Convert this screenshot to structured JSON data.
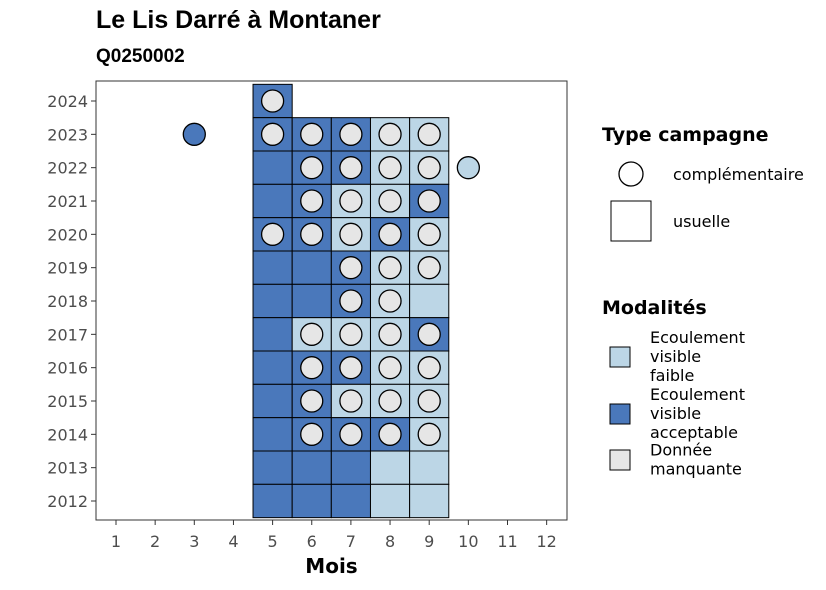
{
  "title": "Le Lis Darré à Montaner",
  "subtitle": "Q0250002",
  "chart_data": {
    "type": "heatmap",
    "xlabel": "Mois",
    "ylabel": "",
    "x_ticks": [
      1,
      2,
      3,
      4,
      5,
      6,
      7,
      8,
      9,
      10,
      11,
      12
    ],
    "y_ticks": [
      2012,
      2013,
      2014,
      2015,
      2016,
      2017,
      2018,
      2019,
      2020,
      2021,
      2022,
      2023,
      2024
    ],
    "grid": false,
    "legend_position": "right",
    "legend_type": {
      "title": "Type campagne",
      "entries": [
        {
          "label": "complémentaire",
          "shape": "circle"
        },
        {
          "label": "usuelle",
          "shape": "square"
        }
      ]
    },
    "legend_modalites": {
      "title": "Modalités",
      "entries": [
        {
          "key": "faible",
          "lines": [
            "Ecoulement",
            "visible",
            "faible"
          ],
          "color": "#bcd6e6"
        },
        {
          "key": "acceptable",
          "lines": [
            "Ecoulement",
            "visible",
            "acceptable"
          ],
          "color": "#4a78bb"
        },
        {
          "key": "manquante",
          "lines": [
            "Donnée",
            "manquante"
          ],
          "color": "#e6e6e6"
        }
      ]
    },
    "colors": {
      "faible": "#bcd6e6",
      "acceptable": "#4a78bb",
      "manquante": "#e6e6e6"
    },
    "usuelle_cells": [
      {
        "year": 2024,
        "month": 5,
        "value": "acceptable"
      },
      {
        "year": 2023,
        "month": 5,
        "value": "acceptable"
      },
      {
        "year": 2023,
        "month": 6,
        "value": "acceptable"
      },
      {
        "year": 2023,
        "month": 7,
        "value": "acceptable"
      },
      {
        "year": 2023,
        "month": 8,
        "value": "faible"
      },
      {
        "year": 2023,
        "month": 9,
        "value": "faible"
      },
      {
        "year": 2022,
        "month": 5,
        "value": "acceptable"
      },
      {
        "year": 2022,
        "month": 6,
        "value": "acceptable"
      },
      {
        "year": 2022,
        "month": 7,
        "value": "acceptable"
      },
      {
        "year": 2022,
        "month": 8,
        "value": "faible"
      },
      {
        "year": 2022,
        "month": 9,
        "value": "faible"
      },
      {
        "year": 2021,
        "month": 5,
        "value": "acceptable"
      },
      {
        "year": 2021,
        "month": 6,
        "value": "acceptable"
      },
      {
        "year": 2021,
        "month": 7,
        "value": "faible"
      },
      {
        "year": 2021,
        "month": 8,
        "value": "faible"
      },
      {
        "year": 2021,
        "month": 9,
        "value": "acceptable"
      },
      {
        "year": 2020,
        "month": 5,
        "value": "acceptable"
      },
      {
        "year": 2020,
        "month": 6,
        "value": "acceptable"
      },
      {
        "year": 2020,
        "month": 7,
        "value": "faible"
      },
      {
        "year": 2020,
        "month": 8,
        "value": "acceptable"
      },
      {
        "year": 2020,
        "month": 9,
        "value": "faible"
      },
      {
        "year": 2019,
        "month": 5,
        "value": "acceptable"
      },
      {
        "year": 2019,
        "month": 6,
        "value": "acceptable"
      },
      {
        "year": 2019,
        "month": 7,
        "value": "acceptable"
      },
      {
        "year": 2019,
        "month": 8,
        "value": "faible"
      },
      {
        "year": 2019,
        "month": 9,
        "value": "faible"
      },
      {
        "year": 2018,
        "month": 5,
        "value": "acceptable"
      },
      {
        "year": 2018,
        "month": 6,
        "value": "acceptable"
      },
      {
        "year": 2018,
        "month": 7,
        "value": "acceptable"
      },
      {
        "year": 2018,
        "month": 8,
        "value": "faible"
      },
      {
        "year": 2018,
        "month": 9,
        "value": "faible"
      },
      {
        "year": 2017,
        "month": 5,
        "value": "acceptable"
      },
      {
        "year": 2017,
        "month": 6,
        "value": "faible"
      },
      {
        "year": 2017,
        "month": 7,
        "value": "faible"
      },
      {
        "year": 2017,
        "month": 8,
        "value": "faible"
      },
      {
        "year": 2017,
        "month": 9,
        "value": "acceptable"
      },
      {
        "year": 2016,
        "month": 5,
        "value": "acceptable"
      },
      {
        "year": 2016,
        "month": 6,
        "value": "acceptable"
      },
      {
        "year": 2016,
        "month": 7,
        "value": "acceptable"
      },
      {
        "year": 2016,
        "month": 8,
        "value": "faible"
      },
      {
        "year": 2016,
        "month": 9,
        "value": "faible"
      },
      {
        "year": 2015,
        "month": 5,
        "value": "acceptable"
      },
      {
        "year": 2015,
        "month": 6,
        "value": "acceptable"
      },
      {
        "year": 2015,
        "month": 7,
        "value": "faible"
      },
      {
        "year": 2015,
        "month": 8,
        "value": "faible"
      },
      {
        "year": 2015,
        "month": 9,
        "value": "faible"
      },
      {
        "year": 2014,
        "month": 5,
        "value": "acceptable"
      },
      {
        "year": 2014,
        "month": 6,
        "value": "acceptable"
      },
      {
        "year": 2014,
        "month": 7,
        "value": "acceptable"
      },
      {
        "year": 2014,
        "month": 8,
        "value": "acceptable"
      },
      {
        "year": 2014,
        "month": 9,
        "value": "faible"
      },
      {
        "year": 2013,
        "month": 5,
        "value": "acceptable"
      },
      {
        "year": 2013,
        "month": 6,
        "value": "acceptable"
      },
      {
        "year": 2013,
        "month": 7,
        "value": "acceptable"
      },
      {
        "year": 2013,
        "month": 8,
        "value": "faible"
      },
      {
        "year": 2013,
        "month": 9,
        "value": "faible"
      },
      {
        "year": 2012,
        "month": 5,
        "value": "acceptable"
      },
      {
        "year": 2012,
        "month": 6,
        "value": "acceptable"
      },
      {
        "year": 2012,
        "month": 7,
        "value": "acceptable"
      },
      {
        "year": 2012,
        "month": 8,
        "value": "faible"
      },
      {
        "year": 2012,
        "month": 9,
        "value": "faible"
      }
    ],
    "complementaire_points": [
      {
        "year": 2024,
        "month": 5,
        "value": "manquante"
      },
      {
        "year": 2023,
        "month": 3,
        "value": "acceptable"
      },
      {
        "year": 2023,
        "month": 5,
        "value": "manquante"
      },
      {
        "year": 2023,
        "month": 6,
        "value": "manquante"
      },
      {
        "year": 2023,
        "month": 7,
        "value": "manquante"
      },
      {
        "year": 2023,
        "month": 8,
        "value": "manquante"
      },
      {
        "year": 2023,
        "month": 9,
        "value": "manquante"
      },
      {
        "year": 2022,
        "month": 6,
        "value": "manquante"
      },
      {
        "year": 2022,
        "month": 7,
        "value": "manquante"
      },
      {
        "year": 2022,
        "month": 8,
        "value": "manquante"
      },
      {
        "year": 2022,
        "month": 9,
        "value": "manquante"
      },
      {
        "year": 2022,
        "month": 10,
        "value": "faible"
      },
      {
        "year": 2021,
        "month": 6,
        "value": "manquante"
      },
      {
        "year": 2021,
        "month": 7,
        "value": "manquante"
      },
      {
        "year": 2021,
        "month": 8,
        "value": "manquante"
      },
      {
        "year": 2021,
        "month": 9,
        "value": "manquante"
      },
      {
        "year": 2020,
        "month": 5,
        "value": "manquante"
      },
      {
        "year": 2020,
        "month": 6,
        "value": "manquante"
      },
      {
        "year": 2020,
        "month": 7,
        "value": "manquante"
      },
      {
        "year": 2020,
        "month": 8,
        "value": "manquante"
      },
      {
        "year": 2020,
        "month": 9,
        "value": "manquante"
      },
      {
        "year": 2019,
        "month": 7,
        "value": "manquante"
      },
      {
        "year": 2019,
        "month": 8,
        "value": "manquante"
      },
      {
        "year": 2019,
        "month": 9,
        "value": "manquante"
      },
      {
        "year": 2018,
        "month": 7,
        "value": "manquante"
      },
      {
        "year": 2018,
        "month": 8,
        "value": "manquante"
      },
      {
        "year": 2017,
        "month": 6,
        "value": "manquante"
      },
      {
        "year": 2017,
        "month": 7,
        "value": "manquante"
      },
      {
        "year": 2017,
        "month": 8,
        "value": "manquante"
      },
      {
        "year": 2017,
        "month": 9,
        "value": "manquante"
      },
      {
        "year": 2016,
        "month": 6,
        "value": "manquante"
      },
      {
        "year": 2016,
        "month": 7,
        "value": "manquante"
      },
      {
        "year": 2016,
        "month": 8,
        "value": "manquante"
      },
      {
        "year": 2016,
        "month": 9,
        "value": "manquante"
      },
      {
        "year": 2015,
        "month": 6,
        "value": "manquante"
      },
      {
        "year": 2015,
        "month": 7,
        "value": "manquante"
      },
      {
        "year": 2015,
        "month": 8,
        "value": "manquante"
      },
      {
        "year": 2015,
        "month": 9,
        "value": "manquante"
      },
      {
        "year": 2014,
        "month": 6,
        "value": "manquante"
      },
      {
        "year": 2014,
        "month": 7,
        "value": "manquante"
      },
      {
        "year": 2014,
        "month": 8,
        "value": "manquante"
      },
      {
        "year": 2014,
        "month": 9,
        "value": "manquante"
      }
    ]
  }
}
